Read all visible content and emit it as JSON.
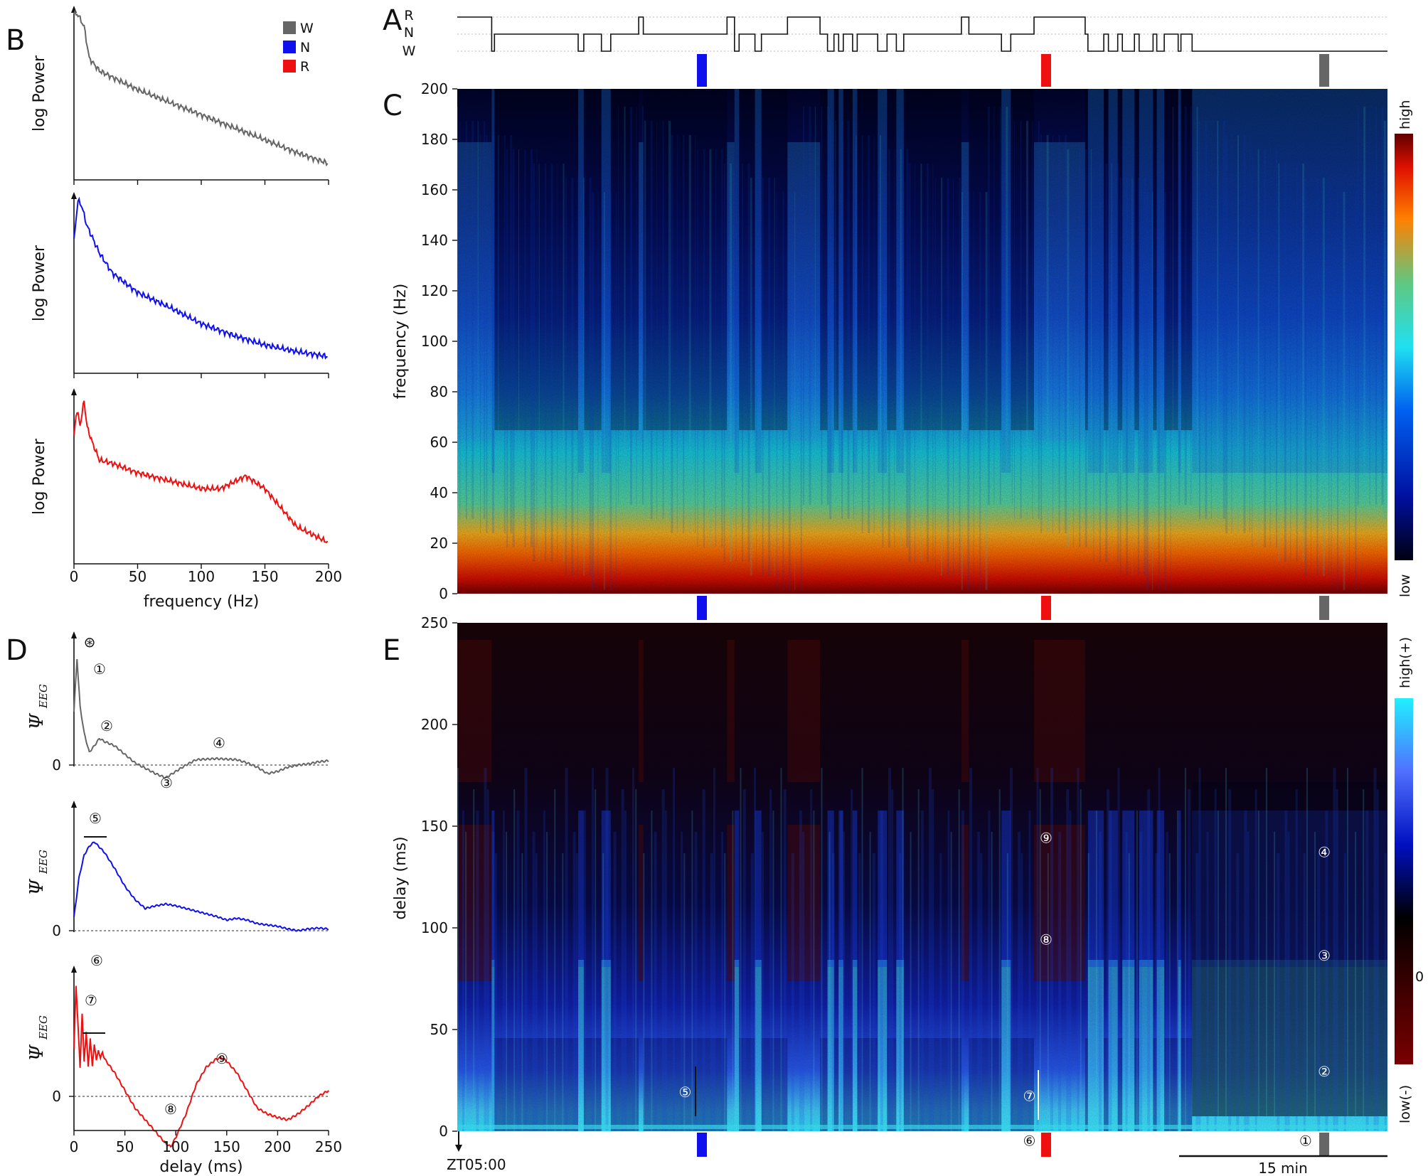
{
  "panels": {
    "A": "A",
    "B": "B",
    "C": "C",
    "D": "D",
    "E": "E"
  },
  "hypnogram": {
    "state_labels": [
      "R",
      "N",
      "W"
    ],
    "segments": [
      {
        "state": "R",
        "until": 0.037
      },
      {
        "state": "W",
        "until": 0.04
      },
      {
        "state": "N",
        "until": 0.13
      },
      {
        "state": "W",
        "until": 0.136
      },
      {
        "state": "N",
        "until": 0.155
      },
      {
        "state": "W",
        "until": 0.165
      },
      {
        "state": "N",
        "until": 0.195
      },
      {
        "state": "R",
        "until": 0.2
      },
      {
        "state": "N",
        "until": 0.29
      },
      {
        "state": "R",
        "until": 0.298
      },
      {
        "state": "W",
        "until": 0.303
      },
      {
        "state": "N",
        "until": 0.32
      },
      {
        "state": "W",
        "until": 0.327
      },
      {
        "state": "N",
        "until": 0.355
      },
      {
        "state": "R",
        "until": 0.39
      },
      {
        "state": "N",
        "until": 0.398
      },
      {
        "state": "W",
        "until": 0.405
      },
      {
        "state": "N",
        "until": 0.41
      },
      {
        "state": "W",
        "until": 0.415
      },
      {
        "state": "N",
        "until": 0.425
      },
      {
        "state": "W",
        "until": 0.43
      },
      {
        "state": "N",
        "until": 0.452
      },
      {
        "state": "W",
        "until": 0.462
      },
      {
        "state": "N",
        "until": 0.472
      },
      {
        "state": "W",
        "until": 0.48
      },
      {
        "state": "N",
        "until": 0.542
      },
      {
        "state": "R",
        "until": 0.55
      },
      {
        "state": "N",
        "until": 0.585
      },
      {
        "state": "W",
        "until": 0.595
      },
      {
        "state": "N",
        "until": 0.62
      },
      {
        "state": "R",
        "until": 0.675
      },
      {
        "state": "N",
        "until": 0.678
      },
      {
        "state": "W",
        "until": 0.695
      },
      {
        "state": "N",
        "until": 0.7
      },
      {
        "state": "W",
        "until": 0.71
      },
      {
        "state": "N",
        "until": 0.715
      },
      {
        "state": "W",
        "until": 0.728
      },
      {
        "state": "N",
        "until": 0.733
      },
      {
        "state": "W",
        "until": 0.748
      },
      {
        "state": "N",
        "until": 0.752
      },
      {
        "state": "W",
        "until": 0.76
      },
      {
        "state": "N",
        "until": 0.775
      },
      {
        "state": "W",
        "until": 0.778
      },
      {
        "state": "N",
        "until": 0.79
      },
      {
        "state": "W",
        "until": 1.0
      }
    ]
  },
  "markers": [
    {
      "state": "N",
      "color": "#1010ee",
      "time_frac": 0.263
    },
    {
      "state": "R",
      "color": "#ee1010",
      "time_frac": 0.633
    },
    {
      "state": "W",
      "color": "#666666",
      "time_frac": 0.932
    }
  ],
  "legend": [
    {
      "label": "W",
      "color": "#666666"
    },
    {
      "label": "N",
      "color": "#1010ee"
    },
    {
      "label": "R",
      "color": "#ee1010"
    }
  ],
  "chart_data": [
    {
      "type": "line",
      "panel": "B",
      "ylabel": "log Power",
      "xlabel": "frequency (Hz)",
      "xlim": [
        0,
        200
      ],
      "xticks": [
        0,
        50,
        100,
        150,
        200
      ],
      "series": [
        {
          "name": "W",
          "color": "#666666",
          "x": [
            0,
            3,
            8,
            12,
            20,
            35,
            50,
            75,
            100,
            125,
            150,
            175,
            200
          ],
          "y": [
            1.0,
            1.0,
            0.92,
            0.72,
            0.64,
            0.58,
            0.52,
            0.44,
            0.36,
            0.28,
            0.2,
            0.12,
            0.05
          ]
        },
        {
          "name": "N",
          "color": "#1010ee",
          "x": [
            0,
            3,
            6,
            10,
            20,
            30,
            40,
            50,
            75,
            100,
            125,
            150,
            175,
            200
          ],
          "y": [
            0.75,
            1.0,
            0.97,
            0.85,
            0.68,
            0.56,
            0.5,
            0.44,
            0.35,
            0.25,
            0.18,
            0.12,
            0.08,
            0.05
          ]
        },
        {
          "name": "R",
          "color": "#ee1010",
          "x": [
            0,
            2,
            5,
            8,
            10,
            14,
            20,
            30,
            50,
            75,
            100,
            115,
            125,
            135,
            150,
            175,
            200
          ],
          "y": [
            0.75,
            0.92,
            0.82,
            0.98,
            0.82,
            0.72,
            0.6,
            0.58,
            0.52,
            0.47,
            0.42,
            0.42,
            0.46,
            0.5,
            0.42,
            0.18,
            0.08
          ]
        }
      ]
    },
    {
      "type": "heatmap",
      "panel": "C",
      "ylabel": "frequency (Hz)",
      "ylim": [
        0,
        200
      ],
      "yticks": [
        0,
        20,
        40,
        60,
        80,
        100,
        120,
        140,
        160,
        180,
        200
      ],
      "colorbar": {
        "high": "high",
        "low": "low"
      }
    },
    {
      "type": "line",
      "panel": "D",
      "ylabel": "Ψ",
      "ylabel_sub": "EEG",
      "xlabel": "delay (ms)",
      "xlim": [
        0,
        250
      ],
      "xticks": [
        0,
        50,
        100,
        150,
        200,
        250
      ],
      "zero_label": "0",
      "series": [
        {
          "name": "W",
          "color": "#666666",
          "x": [
            0,
            3,
            6,
            10,
            15,
            20,
            25,
            30,
            40,
            50,
            60,
            70,
            80,
            90,
            100,
            110,
            120,
            140,
            160,
            170,
            180,
            190,
            200,
            210,
            220,
            230,
            240,
            250
          ],
          "y": [
            0.5,
            1.0,
            0.55,
            0.3,
            0.12,
            0.18,
            0.25,
            0.22,
            0.18,
            0.1,
            0.02,
            -0.03,
            -0.08,
            -0.12,
            -0.06,
            0.0,
            0.05,
            0.06,
            0.05,
            0.02,
            -0.02,
            -0.08,
            -0.06,
            -0.02,
            0.0,
            0.01,
            0.03,
            0.04
          ]
        },
        {
          "name": "N",
          "color": "#1010ee",
          "x": [
            0,
            5,
            10,
            15,
            20,
            30,
            40,
            50,
            60,
            70,
            80,
            90,
            100,
            120,
            140,
            150,
            160,
            170,
            180,
            200,
            210,
            220,
            230,
            240,
            250
          ],
          "y": [
            0.15,
            0.6,
            0.85,
            0.95,
            1.0,
            0.88,
            0.7,
            0.5,
            0.35,
            0.25,
            0.28,
            0.3,
            0.28,
            0.22,
            0.16,
            0.12,
            0.14,
            0.12,
            0.08,
            0.05,
            0.02,
            0.0,
            0.02,
            0.03,
            0.02
          ]
        },
        {
          "name": "R",
          "color": "#ee1010",
          "x": [
            0,
            2,
            4,
            6,
            8,
            10,
            12,
            14,
            16,
            18,
            20,
            22,
            24,
            26,
            28,
            30,
            40,
            50,
            60,
            70,
            80,
            90,
            95,
            100,
            110,
            120,
            130,
            140,
            145,
            150,
            160,
            170,
            180,
            190,
            200,
            210,
            220,
            230,
            240,
            250
          ],
          "y": [
            0.4,
            0.95,
            0.6,
            0.25,
            0.7,
            0.3,
            0.55,
            0.25,
            0.5,
            0.25,
            0.45,
            0.3,
            0.4,
            0.32,
            0.38,
            0.32,
            0.2,
            0.05,
            -0.1,
            -0.2,
            -0.3,
            -0.4,
            -0.43,
            -0.35,
            -0.15,
            0.1,
            0.25,
            0.32,
            0.33,
            0.3,
            0.2,
            0.05,
            -0.1,
            -0.15,
            -0.18,
            -0.2,
            -0.15,
            -0.08,
            0.0,
            0.05
          ]
        }
      ]
    },
    {
      "type": "heatmap",
      "panel": "E",
      "ylabel": "delay (ms)",
      "ylim": [
        0,
        250
      ],
      "yticks": [
        0,
        50,
        100,
        150,
        200,
        250
      ],
      "colorbar": {
        "high": "high(+)",
        "low": "low(-)",
        "zero": "0"
      }
    }
  ],
  "annotations": {
    "D": [
      {
        "label": "⊛",
        "series": "W",
        "x": 3
      },
      {
        "label": "①",
        "series": "W",
        "x": 14
      },
      {
        "label": "②",
        "series": "W",
        "x": 32
      },
      {
        "label": "③",
        "series": "W",
        "x": 90
      },
      {
        "label": "④",
        "series": "W",
        "x": 143
      },
      {
        "label": "⑤",
        "series": "N",
        "x": 22
      },
      {
        "label": "⑥",
        "series": "R",
        "x": 18
      },
      {
        "label": "⑦",
        "series": "R",
        "x": 18
      },
      {
        "label": "⑨",
        "series": "R",
        "x": 145
      },
      {
        "label": "⑧",
        "series": "R",
        "x": 95
      }
    ],
    "E": [
      {
        "label": "⑤",
        "time_frac": 0.245,
        "delay": 20
      },
      {
        "label": "⑦",
        "time_frac": 0.615,
        "delay": 18
      },
      {
        "label": "⑥",
        "time_frac": 0.615,
        "delay": -4
      },
      {
        "label": "⑨",
        "time_frac": 0.633,
        "delay": 145
      },
      {
        "label": "⑧",
        "time_frac": 0.633,
        "delay": 95
      },
      {
        "label": "④",
        "time_frac": 0.932,
        "delay": 138
      },
      {
        "label": "③",
        "time_frac": 0.932,
        "delay": 87
      },
      {
        "label": "②",
        "time_frac": 0.932,
        "delay": 30
      },
      {
        "label": "①",
        "time_frac": 0.912,
        "delay": -4
      }
    ]
  },
  "time_axis": {
    "start_label": "ZT05:00",
    "scalebar_label": "15 min"
  }
}
